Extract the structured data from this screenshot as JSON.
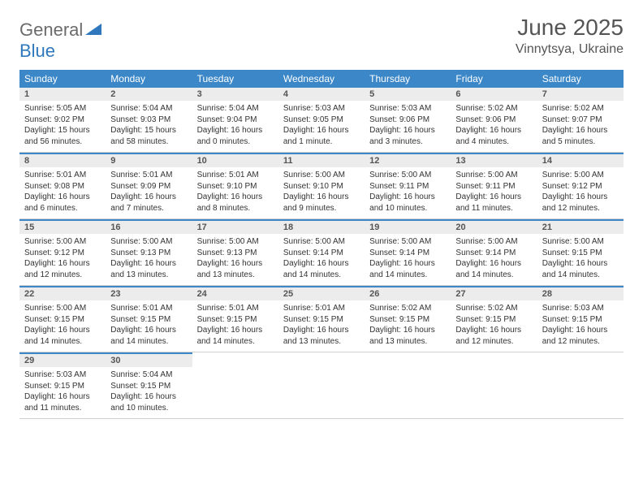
{
  "logo": {
    "part1": "General",
    "part2": "Blue"
  },
  "title": "June 2025",
  "location": "Vinnytsya, Ukraine",
  "colors": {
    "header_bg": "#3b87c8",
    "daynum_bg": "#ececec",
    "accent_border": "#3b87c8",
    "logo_gray": "#6b6b6b",
    "logo_blue": "#2f78bd"
  },
  "weekdays": [
    "Sunday",
    "Monday",
    "Tuesday",
    "Wednesday",
    "Thursday",
    "Friday",
    "Saturday"
  ],
  "weeks": [
    [
      {
        "num": "1",
        "sunrise": "Sunrise: 5:05 AM",
        "sunset": "Sunset: 9:02 PM",
        "daylight": "Daylight: 15 hours and 56 minutes."
      },
      {
        "num": "2",
        "sunrise": "Sunrise: 5:04 AM",
        "sunset": "Sunset: 9:03 PM",
        "daylight": "Daylight: 15 hours and 58 minutes."
      },
      {
        "num": "3",
        "sunrise": "Sunrise: 5:04 AM",
        "sunset": "Sunset: 9:04 PM",
        "daylight": "Daylight: 16 hours and 0 minutes."
      },
      {
        "num": "4",
        "sunrise": "Sunrise: 5:03 AM",
        "sunset": "Sunset: 9:05 PM",
        "daylight": "Daylight: 16 hours and 1 minute."
      },
      {
        "num": "5",
        "sunrise": "Sunrise: 5:03 AM",
        "sunset": "Sunset: 9:06 PM",
        "daylight": "Daylight: 16 hours and 3 minutes."
      },
      {
        "num": "6",
        "sunrise": "Sunrise: 5:02 AM",
        "sunset": "Sunset: 9:06 PM",
        "daylight": "Daylight: 16 hours and 4 minutes."
      },
      {
        "num": "7",
        "sunrise": "Sunrise: 5:02 AM",
        "sunset": "Sunset: 9:07 PM",
        "daylight": "Daylight: 16 hours and 5 minutes."
      }
    ],
    [
      {
        "num": "8",
        "sunrise": "Sunrise: 5:01 AM",
        "sunset": "Sunset: 9:08 PM",
        "daylight": "Daylight: 16 hours and 6 minutes."
      },
      {
        "num": "9",
        "sunrise": "Sunrise: 5:01 AM",
        "sunset": "Sunset: 9:09 PM",
        "daylight": "Daylight: 16 hours and 7 minutes."
      },
      {
        "num": "10",
        "sunrise": "Sunrise: 5:01 AM",
        "sunset": "Sunset: 9:10 PM",
        "daylight": "Daylight: 16 hours and 8 minutes."
      },
      {
        "num": "11",
        "sunrise": "Sunrise: 5:00 AM",
        "sunset": "Sunset: 9:10 PM",
        "daylight": "Daylight: 16 hours and 9 minutes."
      },
      {
        "num": "12",
        "sunrise": "Sunrise: 5:00 AM",
        "sunset": "Sunset: 9:11 PM",
        "daylight": "Daylight: 16 hours and 10 minutes."
      },
      {
        "num": "13",
        "sunrise": "Sunrise: 5:00 AM",
        "sunset": "Sunset: 9:11 PM",
        "daylight": "Daylight: 16 hours and 11 minutes."
      },
      {
        "num": "14",
        "sunrise": "Sunrise: 5:00 AM",
        "sunset": "Sunset: 9:12 PM",
        "daylight": "Daylight: 16 hours and 12 minutes."
      }
    ],
    [
      {
        "num": "15",
        "sunrise": "Sunrise: 5:00 AM",
        "sunset": "Sunset: 9:12 PM",
        "daylight": "Daylight: 16 hours and 12 minutes."
      },
      {
        "num": "16",
        "sunrise": "Sunrise: 5:00 AM",
        "sunset": "Sunset: 9:13 PM",
        "daylight": "Daylight: 16 hours and 13 minutes."
      },
      {
        "num": "17",
        "sunrise": "Sunrise: 5:00 AM",
        "sunset": "Sunset: 9:13 PM",
        "daylight": "Daylight: 16 hours and 13 minutes."
      },
      {
        "num": "18",
        "sunrise": "Sunrise: 5:00 AM",
        "sunset": "Sunset: 9:14 PM",
        "daylight": "Daylight: 16 hours and 14 minutes."
      },
      {
        "num": "19",
        "sunrise": "Sunrise: 5:00 AM",
        "sunset": "Sunset: 9:14 PM",
        "daylight": "Daylight: 16 hours and 14 minutes."
      },
      {
        "num": "20",
        "sunrise": "Sunrise: 5:00 AM",
        "sunset": "Sunset: 9:14 PM",
        "daylight": "Daylight: 16 hours and 14 minutes."
      },
      {
        "num": "21",
        "sunrise": "Sunrise: 5:00 AM",
        "sunset": "Sunset: 9:15 PM",
        "daylight": "Daylight: 16 hours and 14 minutes."
      }
    ],
    [
      {
        "num": "22",
        "sunrise": "Sunrise: 5:00 AM",
        "sunset": "Sunset: 9:15 PM",
        "daylight": "Daylight: 16 hours and 14 minutes."
      },
      {
        "num": "23",
        "sunrise": "Sunrise: 5:01 AM",
        "sunset": "Sunset: 9:15 PM",
        "daylight": "Daylight: 16 hours and 14 minutes."
      },
      {
        "num": "24",
        "sunrise": "Sunrise: 5:01 AM",
        "sunset": "Sunset: 9:15 PM",
        "daylight": "Daylight: 16 hours and 14 minutes."
      },
      {
        "num": "25",
        "sunrise": "Sunrise: 5:01 AM",
        "sunset": "Sunset: 9:15 PM",
        "daylight": "Daylight: 16 hours and 13 minutes."
      },
      {
        "num": "26",
        "sunrise": "Sunrise: 5:02 AM",
        "sunset": "Sunset: 9:15 PM",
        "daylight": "Daylight: 16 hours and 13 minutes."
      },
      {
        "num": "27",
        "sunrise": "Sunrise: 5:02 AM",
        "sunset": "Sunset: 9:15 PM",
        "daylight": "Daylight: 16 hours and 12 minutes."
      },
      {
        "num": "28",
        "sunrise": "Sunrise: 5:03 AM",
        "sunset": "Sunset: 9:15 PM",
        "daylight": "Daylight: 16 hours and 12 minutes."
      }
    ],
    [
      {
        "num": "29",
        "sunrise": "Sunrise: 5:03 AM",
        "sunset": "Sunset: 9:15 PM",
        "daylight": "Daylight: 16 hours and 11 minutes."
      },
      {
        "num": "30",
        "sunrise": "Sunrise: 5:04 AM",
        "sunset": "Sunset: 9:15 PM",
        "daylight": "Daylight: 16 hours and 10 minutes."
      },
      null,
      null,
      null,
      null,
      null
    ]
  ]
}
